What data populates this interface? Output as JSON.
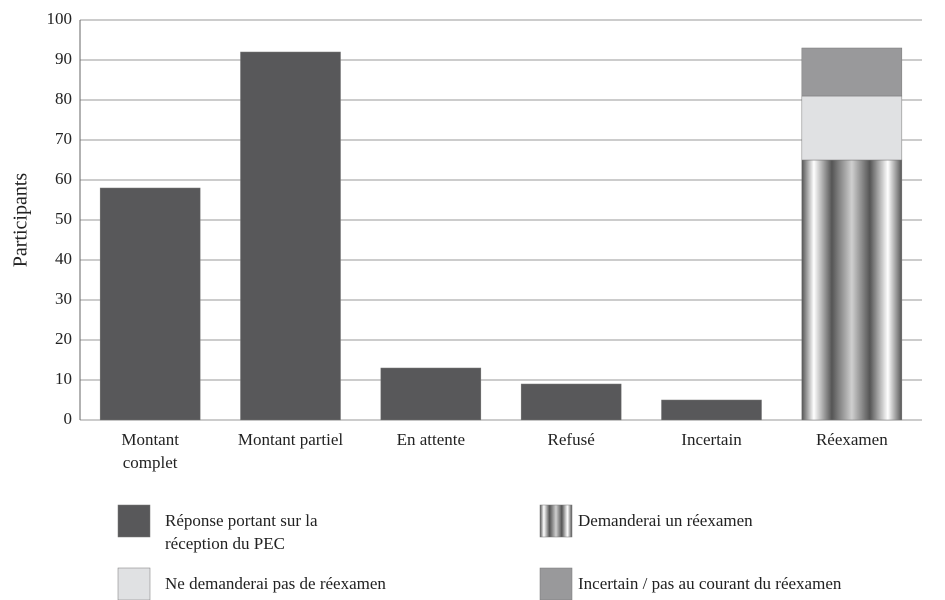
{
  "chart_data": {
    "type": "stacked_bar",
    "y_label": "Participants",
    "categories": [
      "Montant complet",
      "Montant partiel",
      "En attente",
      "Refusé",
      "Incertain",
      "Réexamen"
    ],
    "series": [
      {
        "name": "Réponse portant sur la réception du PEC",
        "color": "#58585a",
        "values": [
          58,
          92,
          13,
          9,
          5,
          null
        ]
      },
      {
        "name": "Demanderai un réexamen",
        "color": "#555555",
        "values": [
          null,
          null,
          null,
          null,
          null,
          65
        ],
        "gradient": true
      },
      {
        "name": "Ne demanderai pas de réexamen",
        "color": "#e0e1e3",
        "values": [
          null,
          null,
          null,
          null,
          null,
          16
        ]
      },
      {
        "name": "Incertain / pas au courant du réexamen",
        "color": "#99999b",
        "values": [
          null,
          null,
          null,
          null,
          null,
          12
        ]
      }
    ],
    "ylim": [
      0,
      100
    ],
    "yticks": [
      0,
      10,
      20,
      30,
      40,
      50,
      60,
      70,
      80,
      90,
      100
    ],
    "grid": true
  }
}
